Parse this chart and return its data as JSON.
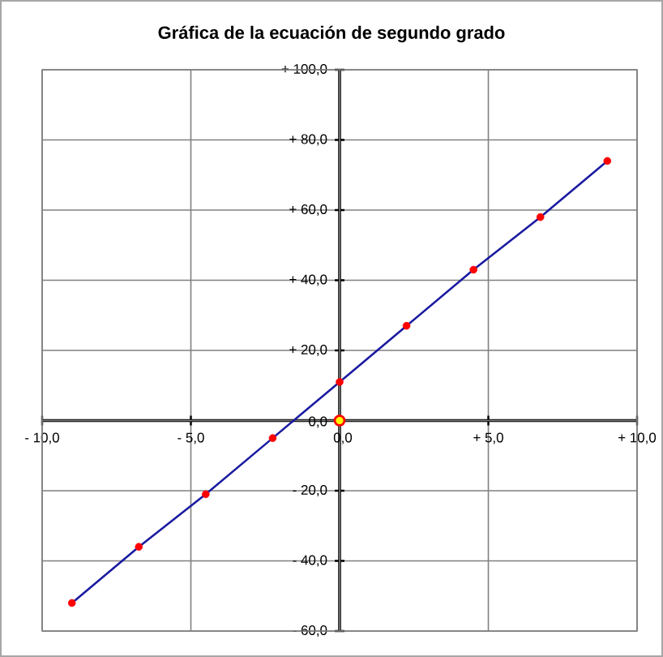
{
  "chart_data": {
    "type": "line",
    "title": "Gráfica de la ecuación de segundo grado",
    "x": [
      -9,
      -6.75,
      -4.5,
      -2.25,
      0,
      2.25,
      4.5,
      6.75,
      9
    ],
    "series": [
      {
        "type": "line",
        "color": "#1a1aa0",
        "colors": [
          "#ff0000",
          "#ff0000",
          "#ff0000",
          "#ff0000",
          "#ff0000",
          "#ff0000",
          "#ff0000",
          "#ff0000",
          "#ff0000"
        ],
        "values": [
          -52,
          -36,
          -21,
          -5,
          11,
          27,
          43,
          58,
          74
        ],
        "marker": "circle"
      },
      {
        "type": "scatter",
        "x": [
          0
        ],
        "color": "#ffff00",
        "values": [
          0
        ],
        "marker": "circle"
      }
    ],
    "xlim": [
      -10,
      10
    ],
    "ylim": [
      -60,
      100
    ],
    "xticks": [
      {
        "value": -10,
        "label": "- 10,0"
      },
      {
        "value": -5,
        "label": "- 5,0"
      },
      {
        "value": 0,
        "label": "0,0"
      },
      {
        "value": 5,
        "label": "+ 5,0"
      },
      {
        "value": 10,
        "label": "+ 10,0"
      }
    ],
    "yticks": [
      {
        "value": -60,
        "label": "- 60,0"
      },
      {
        "value": -40,
        "label": "- 40,0"
      },
      {
        "value": -20,
        "label": "- 20,0"
      },
      {
        "value": 0,
        "label": "0,0"
      },
      {
        "value": 20,
        "label": "+ 20,0"
      },
      {
        "value": 40,
        "label": "+ 40,0"
      },
      {
        "value": 60,
        "label": "+ 60,0"
      },
      {
        "value": 80,
        "label": "+ 80,0"
      },
      {
        "value": 100,
        "label": "+ 100,0"
      }
    ],
    "grid": true,
    "line_style": "solid"
  }
}
